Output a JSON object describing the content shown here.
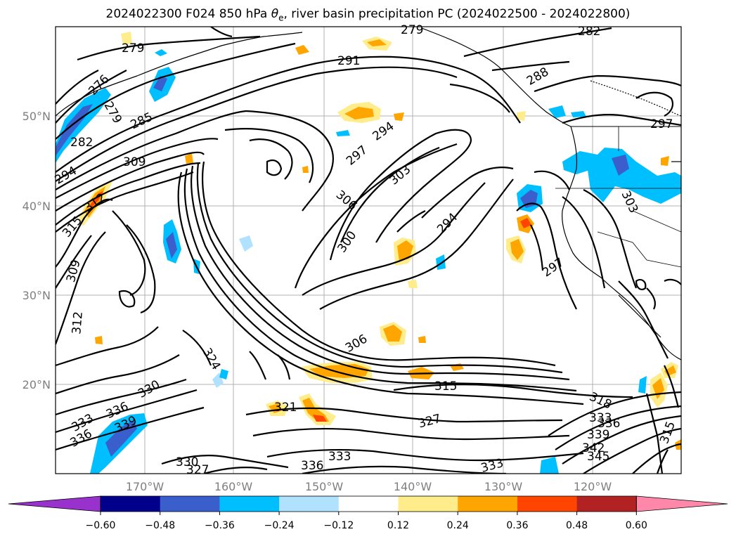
{
  "title_main": "2024022300 F024 850 hPa ",
  "title_theta": "θ",
  "title_sub": "e",
  "title_rest": ", river basin precipitation PC (2024022500 - 2024022800)",
  "lat_labels": [
    "50°N",
    "40°N",
    "30°N",
    "20°N"
  ],
  "lon_labels": [
    "170°W",
    "160°W",
    "150°W",
    "140°W",
    "130°W",
    "120°W"
  ],
  "contour_labels": [
    "279",
    "276",
    "279",
    "282",
    "285",
    "294",
    "309",
    "312",
    "315",
    "309",
    "312",
    "291",
    "294",
    "297",
    "303",
    "306",
    "300",
    "294",
    "297",
    "279",
    "282",
    "288",
    "297",
    "303",
    "324",
    "330",
    "336",
    "333",
    "336",
    "339",
    "321",
    "306",
    "315",
    "327",
    "333",
    "336",
    "330",
    "327",
    "333",
    "318",
    "333",
    "336",
    "339",
    "342",
    "345",
    "315"
  ],
  "colorbar": {
    "colors": [
      "#9932cc",
      "#00008b",
      "#3a5fcd",
      "#00bfff",
      "#b0e2ff",
      "#ffffff",
      "#ffec8b",
      "#ffa500",
      "#ff4500",
      "#b22222",
      "#ff88aa"
    ],
    "tick_labels": [
      "−0.60",
      "−0.48",
      "−0.36",
      "−0.24",
      "−0.12",
      "0.12",
      "0.24",
      "0.36",
      "0.48",
      "0.60"
    ]
  }
}
